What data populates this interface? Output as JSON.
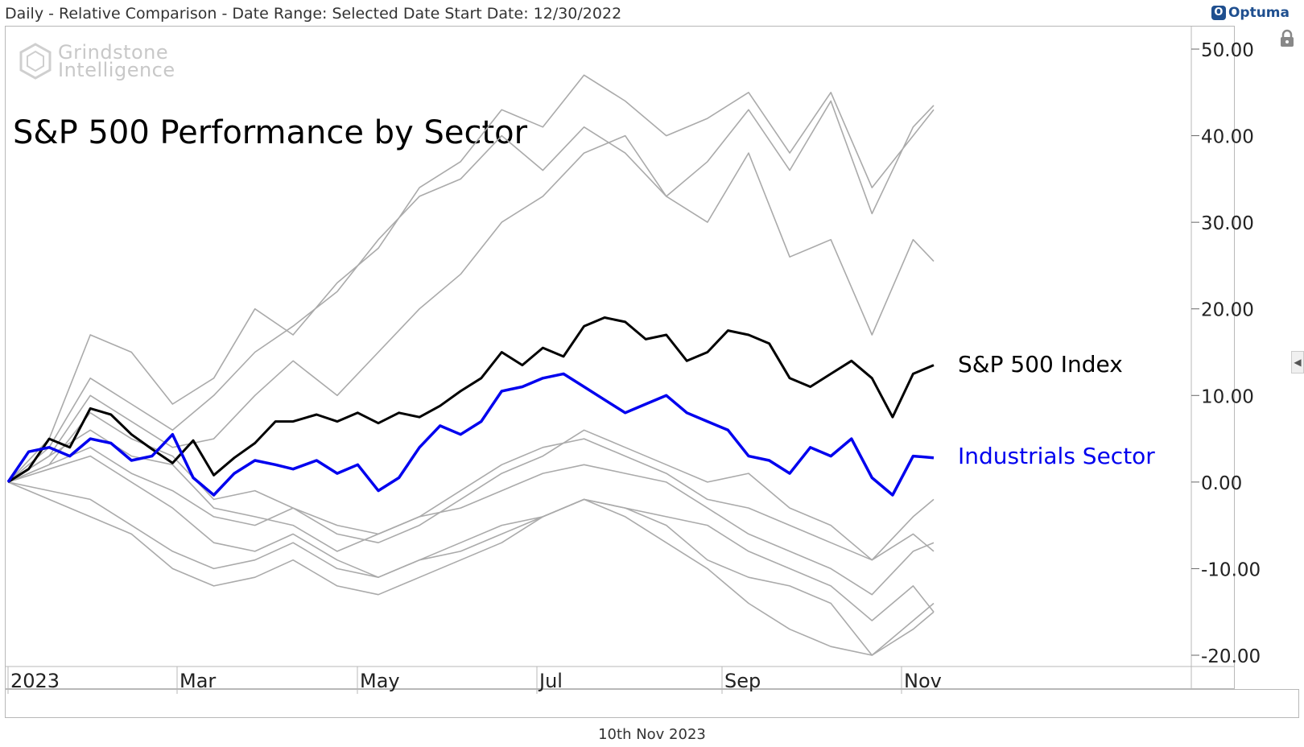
{
  "header": {
    "info": "Daily - Relative Comparison - Date Range: Selected Date  Start Date: 12/30/2022",
    "brand": "Optuma"
  },
  "watermark": {
    "line1": "Grindstone",
    "line2": "Intelligence"
  },
  "footer": {
    "date": "10th Nov 2023"
  },
  "colors": {
    "spx": "#000000",
    "industrials": "#0000ee",
    "other": "#aaaaaa",
    "grid": "#b8b8b8"
  },
  "icons": {
    "lock": "lock-icon",
    "side_panel": "chevron-left-icon",
    "logo": "optuma-logo-icon"
  },
  "chart_data": {
    "type": "line",
    "title": "S&P 500 Performance by Sector",
    "xlabel": "",
    "ylabel": "",
    "x_ticks": [
      "2023",
      "Mar",
      "May",
      "Jul",
      "Sep",
      "Nov"
    ],
    "y_ticks": [
      "50.00",
      "40.00",
      "30.00",
      "20.00",
      "10.00",
      "0.00",
      "-10.00",
      "-20.00"
    ],
    "ylim": [
      -21,
      53
    ],
    "xlim": [
      "2022-12-30",
      "2023-11-10"
    ],
    "grid": false,
    "series": [
      {
        "name": "S&P 500 Index",
        "role": "spx",
        "x": [
          "2022-12-30",
          "2023-01-06",
          "2023-01-13",
          "2023-01-20",
          "2023-01-27",
          "2023-02-03",
          "2023-02-10",
          "2023-02-17",
          "2023-02-24",
          "2023-03-03",
          "2023-03-10",
          "2023-03-17",
          "2023-03-24",
          "2023-03-31",
          "2023-04-06",
          "2023-04-14",
          "2023-04-21",
          "2023-04-28",
          "2023-05-05",
          "2023-05-12",
          "2023-05-19",
          "2023-05-26",
          "2023-06-02",
          "2023-06-09",
          "2023-06-16",
          "2023-06-23",
          "2023-06-30",
          "2023-07-07",
          "2023-07-14",
          "2023-07-21",
          "2023-07-28",
          "2023-08-04",
          "2023-08-11",
          "2023-08-18",
          "2023-08-25",
          "2023-09-01",
          "2023-09-08",
          "2023-09-15",
          "2023-09-22",
          "2023-09-29",
          "2023-10-06",
          "2023-10-13",
          "2023-10-20",
          "2023-10-27",
          "2023-11-03",
          "2023-11-10"
        ],
        "values": [
          0,
          1.5,
          5.0,
          4.0,
          8.5,
          7.8,
          5.5,
          3.8,
          2.2,
          4.8,
          0.8,
          2.8,
          4.5,
          7.0,
          7.0,
          7.8,
          7.0,
          8.0,
          6.8,
          8.0,
          7.5,
          8.8,
          10.5,
          12.0,
          15.0,
          13.5,
          15.5,
          14.5,
          18.0,
          19.0,
          18.5,
          16.5,
          17.0,
          14.0,
          15.0,
          17.5,
          17.0,
          16.0,
          12.0,
          11.0,
          12.5,
          14.0,
          12.0,
          7.5,
          12.5,
          13.5
        ]
      },
      {
        "name": "Industrials Sector",
        "role": "industrials",
        "x": [
          "2022-12-30",
          "2023-01-06",
          "2023-01-13",
          "2023-01-20",
          "2023-01-27",
          "2023-02-03",
          "2023-02-10",
          "2023-02-17",
          "2023-02-24",
          "2023-03-03",
          "2023-03-10",
          "2023-03-17",
          "2023-03-24",
          "2023-03-31",
          "2023-04-06",
          "2023-04-14",
          "2023-04-21",
          "2023-04-28",
          "2023-05-05",
          "2023-05-12",
          "2023-05-19",
          "2023-05-26",
          "2023-06-02",
          "2023-06-09",
          "2023-06-16",
          "2023-06-23",
          "2023-06-30",
          "2023-07-07",
          "2023-07-14",
          "2023-07-21",
          "2023-07-28",
          "2023-08-04",
          "2023-08-11",
          "2023-08-18",
          "2023-08-25",
          "2023-09-01",
          "2023-09-08",
          "2023-09-15",
          "2023-09-22",
          "2023-09-29",
          "2023-10-06",
          "2023-10-13",
          "2023-10-20",
          "2023-10-27",
          "2023-11-03",
          "2023-11-10"
        ],
        "values": [
          0,
          3.5,
          4.0,
          3.0,
          5.0,
          4.5,
          2.5,
          3.0,
          5.5,
          0.5,
          -1.5,
          1.0,
          2.5,
          2.0,
          1.5,
          2.5,
          1.0,
          2.0,
          -1.0,
          0.5,
          4.0,
          6.5,
          5.5,
          7.0,
          10.5,
          11.0,
          12.0,
          12.5,
          11.0,
          9.5,
          8.0,
          9.0,
          10.0,
          8.0,
          7.0,
          6.0,
          3.0,
          2.5,
          1.0,
          4.0,
          3.0,
          5.0,
          0.5,
          -1.5,
          3.0,
          2.8
        ]
      },
      {
        "name": "",
        "role": "other",
        "x": [
          "2022-12-30",
          "2023-01-13",
          "2023-01-27",
          "2023-02-10",
          "2023-02-24",
          "2023-03-10",
          "2023-03-24",
          "2023-04-06",
          "2023-04-21",
          "2023-05-05",
          "2023-05-19",
          "2023-06-02",
          "2023-06-16",
          "2023-06-30",
          "2023-07-14",
          "2023-07-28",
          "2023-08-11",
          "2023-08-25",
          "2023-09-08",
          "2023-09-22",
          "2023-10-06",
          "2023-10-20",
          "2023-11-03",
          "2023-11-10"
        ],
        "values": [
          0,
          5.0,
          17.0,
          15.0,
          9.0,
          12.0,
          20.0,
          17.0,
          23.0,
          27.0,
          34.0,
          37.0,
          43.0,
          41.0,
          47.0,
          44.0,
          40.0,
          42.0,
          45.0,
          38.0,
          45.0,
          34.0,
          40.0,
          43.0
        ]
      },
      {
        "name": "",
        "role": "other",
        "x": [
          "2022-12-30",
          "2023-01-13",
          "2023-01-27",
          "2023-02-10",
          "2023-02-24",
          "2023-03-10",
          "2023-03-24",
          "2023-04-06",
          "2023-04-21",
          "2023-05-05",
          "2023-05-19",
          "2023-06-02",
          "2023-06-16",
          "2023-06-30",
          "2023-07-14",
          "2023-07-28",
          "2023-08-11",
          "2023-08-25",
          "2023-09-08",
          "2023-09-22",
          "2023-10-06",
          "2023-10-20",
          "2023-11-03",
          "2023-11-10"
        ],
        "values": [
          0,
          4.0,
          12.0,
          9.0,
          6.0,
          10.0,
          15.0,
          18.0,
          22.0,
          28.0,
          33.0,
          35.0,
          40.0,
          36.0,
          41.0,
          38.0,
          33.0,
          37.0,
          43.0,
          36.0,
          44.0,
          31.0,
          41.0,
          43.5
        ]
      },
      {
        "name": "",
        "role": "other",
        "x": [
          "2022-12-30",
          "2023-01-13",
          "2023-01-27",
          "2023-02-10",
          "2023-02-24",
          "2023-03-10",
          "2023-03-24",
          "2023-04-06",
          "2023-04-21",
          "2023-05-05",
          "2023-05-19",
          "2023-06-02",
          "2023-06-16",
          "2023-06-30",
          "2023-07-14",
          "2023-07-28",
          "2023-08-11",
          "2023-08-25",
          "2023-09-08",
          "2023-09-22",
          "2023-10-06",
          "2023-10-20",
          "2023-11-03",
          "2023-11-10"
        ],
        "values": [
          0,
          3.0,
          10.0,
          7.0,
          4.0,
          5.0,
          10.0,
          14.0,
          10.0,
          15.0,
          20.0,
          24.0,
          30.0,
          33.0,
          38.0,
          40.0,
          33.0,
          30.0,
          38.0,
          26.0,
          28.0,
          17.0,
          28.0,
          25.5
        ]
      },
      {
        "name": "",
        "role": "other",
        "x": [
          "2022-12-30",
          "2023-01-13",
          "2023-01-27",
          "2023-02-10",
          "2023-02-24",
          "2023-03-10",
          "2023-03-24",
          "2023-04-06",
          "2023-04-21",
          "2023-05-05",
          "2023-05-19",
          "2023-06-02",
          "2023-06-16",
          "2023-06-30",
          "2023-07-14",
          "2023-07-28",
          "2023-08-11",
          "2023-08-25",
          "2023-09-08",
          "2023-09-22",
          "2023-10-06",
          "2023-10-20",
          "2023-11-03",
          "2023-11-10"
        ],
        "values": [
          0,
          2.0,
          8.0,
          5.0,
          3.0,
          -2.0,
          -1.0,
          -3.0,
          -6.0,
          -7.0,
          -5.0,
          -2.0,
          1.0,
          3.0,
          6.0,
          4.0,
          2.0,
          0.0,
          1.0,
          -3.0,
          -5.0,
          -9.0,
          -4.0,
          -2.0
        ]
      },
      {
        "name": "",
        "role": "other",
        "x": [
          "2022-12-30",
          "2023-01-13",
          "2023-01-27",
          "2023-02-10",
          "2023-02-24",
          "2023-03-10",
          "2023-03-24",
          "2023-04-06",
          "2023-04-21",
          "2023-05-05",
          "2023-05-19",
          "2023-06-02",
          "2023-06-16",
          "2023-06-30",
          "2023-07-14",
          "2023-07-28",
          "2023-08-11",
          "2023-08-25",
          "2023-09-08",
          "2023-09-22",
          "2023-10-06",
          "2023-10-20",
          "2023-11-03",
          "2023-11-10"
        ],
        "values": [
          0,
          3.0,
          6.0,
          3.0,
          2.0,
          -3.0,
          -4.0,
          -5.0,
          -8.0,
          -6.0,
          -4.0,
          -1.0,
          2.0,
          4.0,
          5.0,
          3.0,
          1.0,
          -2.0,
          -3.0,
          -5.0,
          -7.0,
          -9.0,
          -6.0,
          -8.0
        ]
      },
      {
        "name": "",
        "role": "other",
        "x": [
          "2022-12-30",
          "2023-01-13",
          "2023-01-27",
          "2023-02-10",
          "2023-02-24",
          "2023-03-10",
          "2023-03-24",
          "2023-04-06",
          "2023-04-21",
          "2023-05-05",
          "2023-05-19",
          "2023-06-02",
          "2023-06-16",
          "2023-06-30",
          "2023-07-14",
          "2023-07-28",
          "2023-08-11",
          "2023-08-25",
          "2023-09-08",
          "2023-09-22",
          "2023-10-06",
          "2023-10-20",
          "2023-11-03",
          "2023-11-10"
        ],
        "values": [
          0,
          1.5,
          3.0,
          0.0,
          -3.0,
          -7.0,
          -8.0,
          -6.0,
          -9.0,
          -11.0,
          -9.0,
          -7.0,
          -5.0,
          -4.0,
          -2.0,
          -3.0,
          -4.0,
          -5.0,
          -8.0,
          -10.0,
          -12.0,
          -16.0,
          -12.0,
          -15.0
        ]
      },
      {
        "name": "",
        "role": "other",
        "x": [
          "2022-12-30",
          "2023-01-13",
          "2023-01-27",
          "2023-02-10",
          "2023-02-24",
          "2023-03-10",
          "2023-03-24",
          "2023-04-06",
          "2023-04-21",
          "2023-05-05",
          "2023-05-19",
          "2023-06-02",
          "2023-06-16",
          "2023-06-30",
          "2023-07-14",
          "2023-07-28",
          "2023-08-11",
          "2023-08-25",
          "2023-09-08",
          "2023-09-22",
          "2023-10-06",
          "2023-10-20",
          "2023-11-03",
          "2023-11-10"
        ],
        "values": [
          0,
          -1.0,
          -2.0,
          -5.0,
          -8.0,
          -10.0,
          -9.0,
          -7.0,
          -10.0,
          -11.0,
          -9.0,
          -8.0,
          -6.0,
          -4.0,
          -2.0,
          -3.0,
          -5.0,
          -9.0,
          -11.0,
          -12.0,
          -14.0,
          -20.0,
          -17.0,
          -15.0
        ]
      },
      {
        "name": "",
        "role": "other",
        "x": [
          "2022-12-30",
          "2023-01-13",
          "2023-01-27",
          "2023-02-10",
          "2023-02-24",
          "2023-03-10",
          "2023-03-24",
          "2023-04-06",
          "2023-04-21",
          "2023-05-05",
          "2023-05-19",
          "2023-06-02",
          "2023-06-16",
          "2023-06-30",
          "2023-07-14",
          "2023-07-28",
          "2023-08-11",
          "2023-08-25",
          "2023-09-08",
          "2023-09-22",
          "2023-10-06",
          "2023-10-20",
          "2023-11-03",
          "2023-11-10"
        ],
        "values": [
          0,
          2.0,
          4.0,
          1.0,
          -1.0,
          -4.0,
          -5.0,
          -3.0,
          -5.0,
          -6.0,
          -4.0,
          -3.0,
          -1.0,
          1.0,
          2.0,
          1.0,
          0.0,
          -3.0,
          -6.0,
          -8.0,
          -10.0,
          -13.0,
          -8.0,
          -7.0
        ]
      },
      {
        "name": "",
        "role": "other",
        "x": [
          "2022-12-30",
          "2023-01-13",
          "2023-01-27",
          "2023-02-10",
          "2023-02-24",
          "2023-03-10",
          "2023-03-24",
          "2023-04-06",
          "2023-04-21",
          "2023-05-05",
          "2023-05-19",
          "2023-06-02",
          "2023-06-16",
          "2023-06-30",
          "2023-07-14",
          "2023-07-28",
          "2023-08-11",
          "2023-08-25",
          "2023-09-08",
          "2023-09-22",
          "2023-10-06",
          "2023-10-20",
          "2023-11-03",
          "2023-11-10"
        ],
        "values": [
          0,
          -2.0,
          -4.0,
          -6.0,
          -10.0,
          -12.0,
          -11.0,
          -9.0,
          -12.0,
          -13.0,
          -11.0,
          -9.0,
          -7.0,
          -4.0,
          -2.0,
          -4.0,
          -7.0,
          -10.0,
          -14.0,
          -17.0,
          -19.0,
          -20.0,
          -16.0,
          -14.0
        ]
      }
    ]
  }
}
